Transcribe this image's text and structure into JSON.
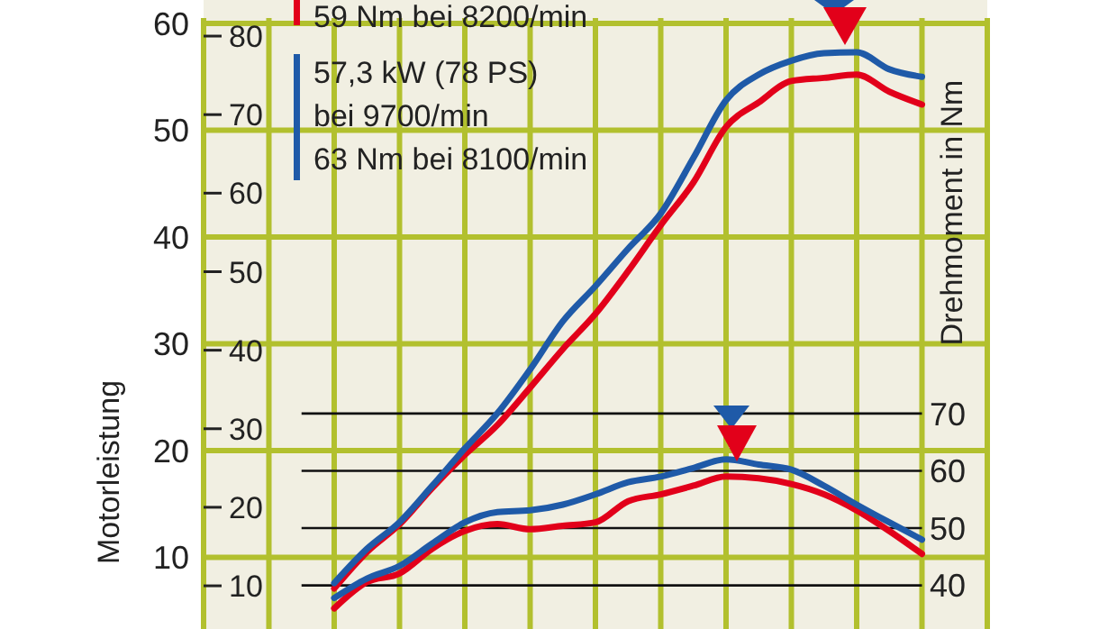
{
  "chart_data": {
    "type": "line",
    "ylabel": "Motorleistung",
    "y2label": "Drehmoment in Nm",
    "categories": [
      null,
      null,
      null,
      null,
      null,
      null,
      null,
      null,
      null,
      null,
      null,
      null,
      null,
      null,
      null,
      null,
      null,
      null,
      null,
      null,
      null,
      null,
      null,
      null,
      null
    ],
    "series": [
      {
        "color": "#e2001a",
        "values": [
          null,
          null,
          null,
          null,
          7.1,
          10.5,
          13.1,
          16.5,
          19.6,
          22.4,
          25.9,
          29.5,
          32.8,
          36.8,
          41.1,
          45.1,
          50.3,
          52.6,
          54.6,
          54.9,
          55.2,
          53.6,
          52.4,
          null,
          null
        ]
      },
      {
        "color": "#1f5aa8",
        "values": [
          null,
          null,
          null,
          null,
          7.6,
          10.8,
          13.3,
          16.7,
          20.2,
          23.5,
          27.6,
          32.1,
          35.4,
          38.9,
          42.2,
          47.4,
          52.8,
          55.2,
          56.5,
          57.2,
          57.3,
          55.7,
          55.0,
          null,
          null
        ]
      },
      {
        "color": "#e2001a",
        "axis": "y2",
        "values": [
          null,
          null,
          null,
          null,
          36.0,
          40.6,
          42.1,
          46.4,
          49.5,
          50.7,
          49.8,
          50.4,
          51.0,
          54.7,
          55.9,
          57.4,
          59.0,
          58.7,
          57.7,
          55.9,
          53.1,
          49.5,
          45.5,
          null,
          null
        ]
      },
      {
        "color": "#1f5aa8",
        "axis": "y2",
        "values": [
          null,
          null,
          null,
          null,
          37.8,
          41.2,
          43.4,
          47.3,
          51.0,
          52.8,
          53.1,
          54.1,
          55.9,
          58.0,
          59.0,
          60.5,
          62.0,
          61.1,
          60.2,
          57.4,
          54.1,
          51.0,
          48.0,
          null,
          null
        ]
      }
    ],
    "ylim": [
      3.3,
      60.5
    ],
    "yticks": [
      10,
      20,
      30,
      40,
      50,
      60
    ],
    "y3lim": [
      4.5,
      82.3
    ],
    "y3ticks": [
      10,
      20,
      30,
      40,
      50,
      60,
      70,
      80
    ],
    "y2lim": [
      32.4,
      139
    ],
    "y2ticks": [
      40,
      50,
      60,
      70
    ],
    "annotations": [
      "59 Nm bei 8200/min",
      "57,3 kW (78 PS)",
      "bei 9700/min",
      "63 Nm bei 8100/min"
    ],
    "grid": true,
    "marker": "none",
    "line_style": "solid",
    "tick_labels": "y"
  }
}
